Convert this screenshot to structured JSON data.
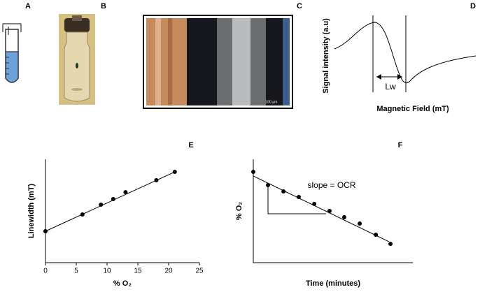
{
  "panels": {
    "a": "A",
    "b": "B",
    "c": "C",
    "d": "D"
  },
  "panel_c": {
    "scale_bar": "100 µm"
  },
  "panel_d": {
    "ylabel": "Signal intensity (a.u)",
    "xlabel": "Magnetic Field (mT)",
    "annotation": "Lw"
  },
  "chart_data": [
    {
      "type": "scatter",
      "label": "E",
      "xlabel": "% O₂",
      "ylabel": "Linewidth (mT)",
      "x": [
        0,
        6,
        9,
        11,
        13,
        18,
        21
      ],
      "values": [
        30.4,
        46.6,
        56.1,
        61.5,
        68.2,
        79.7,
        87.8
      ],
      "fit": {
        "x": [
          0,
          21
        ],
        "values": [
          30.4,
          87.8
        ]
      },
      "xlim": [
        0,
        25
      ],
      "xticks": [
        0,
        5,
        10,
        15,
        20,
        25
      ],
      "ylim": [
        0,
        100
      ],
      "color": "#000000"
    },
    {
      "type": "scatter",
      "label": "F",
      "xlabel": "Time (minutes)",
      "ylabel": "% O₂",
      "annotation": "slope = OCR",
      "x": [
        0,
        9.2,
        18.9,
        28.5,
        38.2,
        47.8,
        57.0,
        66.7,
        76.8,
        86.0
      ],
      "values": [
        87.8,
        75.0,
        68.9,
        63.5,
        56.8,
        50.0,
        43.9,
        37.8,
        27.0,
        18.2
      ],
      "fit": {
        "x": [
          0,
          85
        ],
        "values": [
          83.8,
          20.3
        ]
      },
      "xlim": [
        0,
        100
      ],
      "ylim": [
        0,
        100
      ],
      "color": "#000000"
    }
  ]
}
